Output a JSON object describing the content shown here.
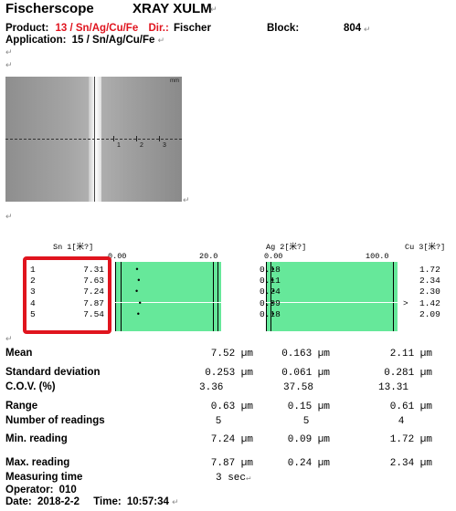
{
  "header": {
    "brand": "Fischerscope",
    "model": "XRAY XULM",
    "product_label": "Product:",
    "product_value": "13 / Sn/Ag/Cu/Fe",
    "dir_label": "Dir.:",
    "dir_value": "Fischer",
    "block_label": "Block:",
    "block_value": "804",
    "application_label": "Application:",
    "application_value": "15 / Sn/Ag/Cu/Fe"
  },
  "scope_image": {
    "unit": "mm",
    "ticks": [
      "1",
      "2",
      "3"
    ]
  },
  "elements": [
    {
      "name": "Sn 1[米?]",
      "scale_min": "0.00",
      "scale_max": "20.0"
    },
    {
      "name": "Ag 2[米?]",
      "scale_min": "0.00",
      "scale_max": "100.0"
    },
    {
      "name": "Cu 3[米?]"
    }
  ],
  "readings": {
    "index": [
      "1",
      "2",
      "3",
      "4",
      "5"
    ],
    "sn": [
      "7.31",
      "7.63",
      "7.24",
      "7.87",
      "7.54"
    ],
    "ag": [
      "0.18",
      "0.11",
      "0.24",
      "0.09",
      "0.18"
    ],
    "cu": [
      "1.72",
      "2.34",
      "2.30",
      "1.42",
      "2.09"
    ],
    "cu_flag_row": 4,
    "cu_flag": ">"
  },
  "stats": {
    "mean": {
      "label": "Mean",
      "sn": "7.52 µm",
      "ag": "0.163 µm",
      "cu": "2.11 µm"
    },
    "sd": {
      "label": "Standard deviation",
      "sn": "0.253 µm",
      "ag": "0.061 µm",
      "cu": "0.281 µm"
    },
    "cov": {
      "label": "C.O.V. (%)",
      "sn": "3.36",
      "ag": "37.58",
      "cu": "13.31"
    },
    "range": {
      "label": "Range",
      "sn": "0.63 µm",
      "ag": "0.15 µm",
      "cu": "0.61 µm"
    },
    "n": {
      "label": "Number of readings",
      "sn": "5",
      "ag": "5",
      "cu": "4"
    },
    "min": {
      "label": "Min. reading",
      "sn": "7.24 µm",
      "ag": "0.09 µm",
      "cu": "1.72 µm"
    },
    "max": {
      "label": "Max. reading",
      "sn": "7.87 µm",
      "ag": "0.24 µm",
      "cu": "2.34 µm"
    }
  },
  "footer": {
    "measuring_time_label": "Measuring time",
    "measuring_time_value": "3 sec",
    "operator_label": "Operator:",
    "operator_value": "010",
    "date_label": "Date:",
    "date_value": "2018-2-2",
    "time_label": "Time:",
    "time_value": "10:57:34"
  },
  "highlight_color": "#e0141e",
  "bar_color": "#66e89a"
}
